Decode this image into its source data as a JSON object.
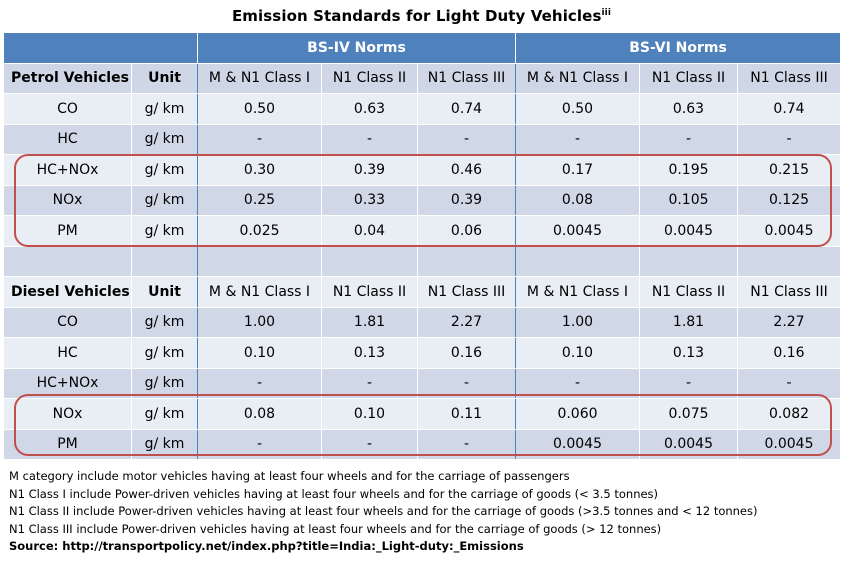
{
  "title": "Emission Standards for Light Duty Vehicles",
  "title_sup": "iii",
  "groups": [
    "BS-IV Norms",
    "BS-VI Norms"
  ],
  "class_headers": [
    "M & N1 Class I",
    "N1 Class II",
    "N1 Class III",
    "M & N1 Class I",
    "N1 Class II",
    "N1 Class III"
  ],
  "petrol": {
    "label": "Petrol Vehicles",
    "unit_header": "Unit",
    "rows": [
      {
        "pollutant": "CO",
        "unit": "g/ km",
        "values": [
          "0.50",
          "0.63",
          "0.74",
          "0.50",
          "0.63",
          "0.74"
        ]
      },
      {
        "pollutant": "HC",
        "unit": "g/ km",
        "values": [
          "-",
          "-",
          "-",
          "-",
          "-",
          "-"
        ]
      },
      {
        "pollutant": "HC+NOx",
        "unit": "g/ km",
        "values": [
          "0.30",
          "0.39",
          "0.46",
          "0.17",
          "0.195",
          "0.215"
        ]
      },
      {
        "pollutant": "NOx",
        "unit": "g/ km",
        "values": [
          "0.25",
          "0.33",
          "0.39",
          "0.08",
          "0.105",
          "0.125"
        ]
      },
      {
        "pollutant": "PM",
        "unit": "g/ km",
        "values": [
          "0.025",
          "0.04",
          "0.06",
          "0.0045",
          "0.0045",
          "0.0045"
        ]
      }
    ]
  },
  "diesel": {
    "label": "Diesel Vehicles",
    "unit_header": "Unit",
    "rows": [
      {
        "pollutant": "CO",
        "unit": "g/ km",
        "values": [
          "1.00",
          "1.81",
          "2.27",
          "1.00",
          "1.81",
          "2.27"
        ]
      },
      {
        "pollutant": "HC",
        "unit": "g/ km",
        "values": [
          "0.10",
          "0.13",
          "0.16",
          "0.10",
          "0.13",
          "0.16"
        ]
      },
      {
        "pollutant": "HC+NOx",
        "unit": "g/ km",
        "values": [
          "-",
          "-",
          "-",
          "-",
          "-",
          "-"
        ]
      },
      {
        "pollutant": "NOx",
        "unit": "g/ km",
        "values": [
          "0.08",
          "0.10",
          "0.11",
          "0.060",
          "0.075",
          "0.082"
        ]
      },
      {
        "pollutant": "PM",
        "unit": "g/ km",
        "values": [
          "-",
          "-",
          "-",
          "0.0045",
          "0.0045",
          "0.0045"
        ]
      }
    ]
  },
  "notes": [
    "M category  include motor vehicles having at least four wheels and for the carriage of passengers",
    "N1 Class I include Power-driven vehicles having at least four wheels and for the carriage of goods (< 3.5 tonnes)",
    "N1 Class II include Power-driven vehicles having at least four wheels and for the carriage of goods (>3.5 tonnes and < 12 tonnes)",
    "N1 Class III include Power-driven vehicles having at least four wheels and for the carriage of goods (> 12 tonnes)"
  ],
  "source": "Source: http://transportpolicy.net/index.php?title=India:_Light-duty:_Emissions",
  "colors": {
    "header_blue": "#4f81bd",
    "row_dark": "#d0d8e8",
    "row_light": "#e9edf4",
    "highlight_box": "#c0504d"
  }
}
